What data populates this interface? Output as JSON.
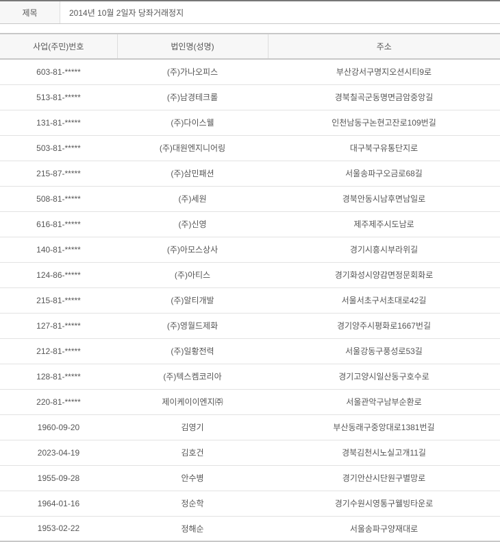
{
  "title": {
    "label": "제목",
    "value": "2014년 10월 2일자 당좌거래정지"
  },
  "columns": [
    "사업(주민)번호",
    "법인명(성명)",
    "주소"
  ],
  "rows": [
    [
      "603-81-*****",
      "(주)가나오피스",
      "부산강서구명지오션시티9로"
    ],
    [
      "513-81-*****",
      "(주)남경테크롤",
      "경북칠곡군동명면금암중앙길"
    ],
    [
      "131-81-*****",
      "(주)다이스웰",
      "인천남동구논현고잔로109번길"
    ],
    [
      "503-81-*****",
      "(주)대원엔지니어링",
      "대구북구유통단지로"
    ],
    [
      "215-87-*****",
      "(주)삼민패션",
      "서울송파구오금로68길"
    ],
    [
      "508-81-*****",
      "(주)세원",
      "경북안동시남후면남일로"
    ],
    [
      "616-81-*****",
      "(주)신영",
      "제주제주시도남로"
    ],
    [
      "140-81-*****",
      "(주)아모스상사",
      "경기시흥시부라위길"
    ],
    [
      "124-86-*****",
      "(주)아티스",
      "경기화성시양감면정문회화로"
    ],
    [
      "215-81-*****",
      "(주)알티개발",
      "서울서초구서초대로42길"
    ],
    [
      "127-81-*****",
      "(주)영월드제화",
      "경기양주시평화로1667번길"
    ],
    [
      "212-81-*****",
      "(주)일황전력",
      "서울강동구풍성로53길"
    ],
    [
      "128-81-*****",
      "(주)텍스켐코리아",
      "경기고양시일산동구호수로"
    ],
    [
      "220-81-*****",
      "제이케이이엔지㈜",
      "서울관악구남부순환로"
    ],
    [
      "1960-09-20",
      "김영기",
      "부산동래구중앙대로1381번길"
    ],
    [
      "2023-04-19",
      "김호건",
      "경북김천시노실고개11길"
    ],
    [
      "1955-09-28",
      "안수병",
      "경기안산시단원구별망로"
    ],
    [
      "1964-01-16",
      "정순학",
      "경기수원시영통구웰빙타운로"
    ],
    [
      "1953-02-22",
      "정해순",
      "서울송파구양재대로"
    ]
  ]
}
